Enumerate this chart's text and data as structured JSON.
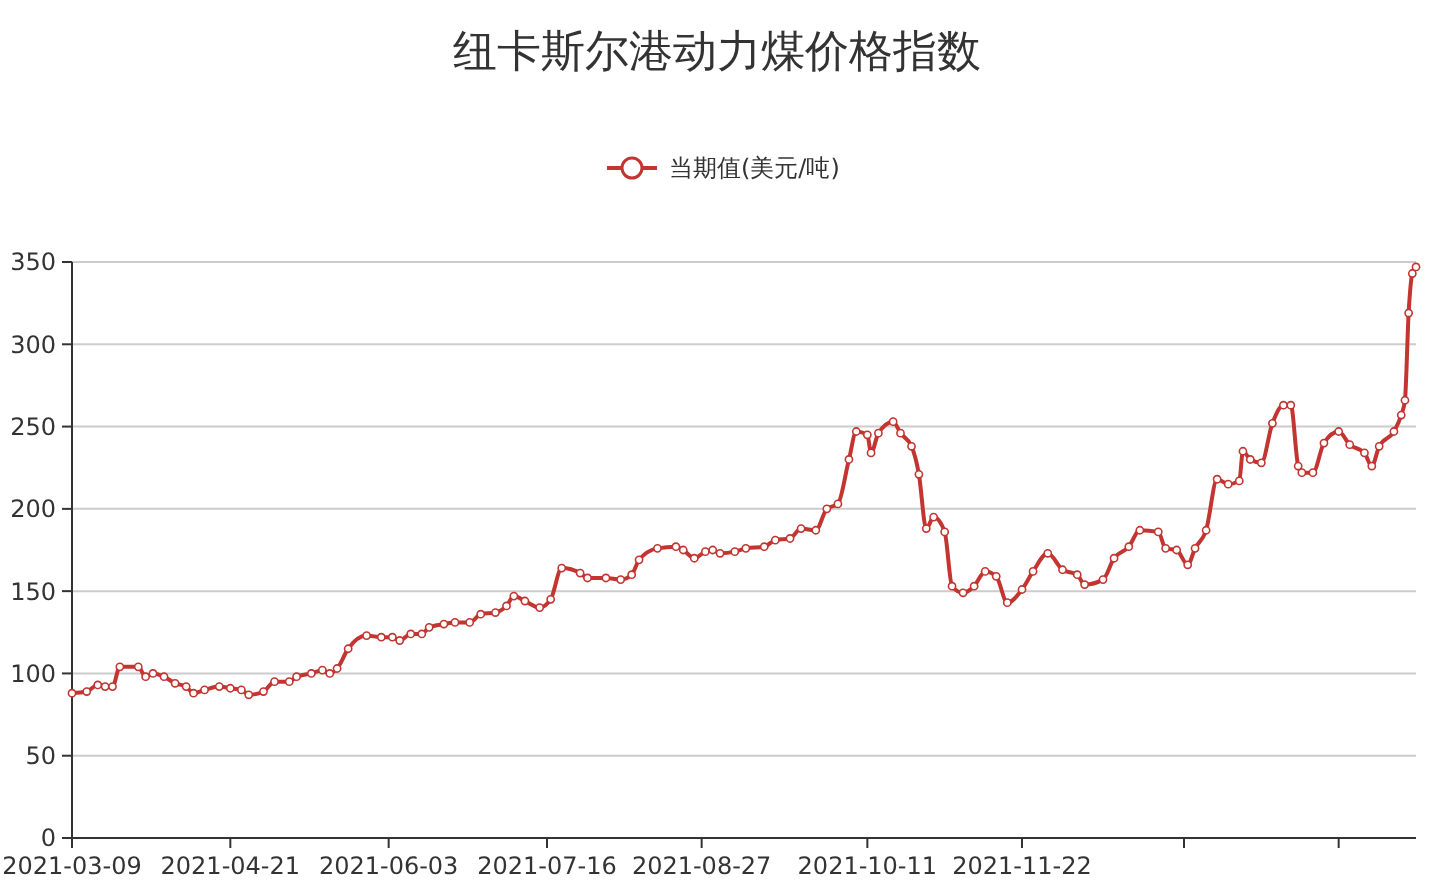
{
  "chart_data": {
    "type": "line",
    "title": "纽卡斯尔港动力煤价格指数",
    "x": [
      "2021-03-09",
      "2021-03-13",
      "2021-03-16",
      "2021-03-18",
      "2021-03-20",
      "2021-03-22",
      "2021-03-27",
      "2021-03-29",
      "2021-03-31",
      "2021-04-03",
      "2021-04-06",
      "2021-04-09",
      "2021-04-11",
      "2021-04-14",
      "2021-04-18",
      "2021-04-21",
      "2021-04-24",
      "2021-04-26",
      "2021-04-30",
      "2021-05-03",
      "2021-05-07",
      "2021-05-09",
      "2021-05-13",
      "2021-05-16",
      "2021-05-18",
      "2021-05-20",
      "2021-05-23",
      "2021-05-28",
      "2021-06-01",
      "2021-06-04",
      "2021-06-06",
      "2021-06-09",
      "2021-06-12",
      "2021-06-14",
      "2021-06-18",
      "2021-06-21",
      "2021-06-25",
      "2021-06-28",
      "2021-07-02",
      "2021-07-05",
      "2021-07-07",
      "2021-07-10",
      "2021-07-14",
      "2021-07-17",
      "2021-07-20",
      "2021-07-25",
      "2021-07-27",
      "2021-08-01",
      "2021-08-05",
      "2021-08-08",
      "2021-08-10",
      "2021-08-15",
      "2021-08-20",
      "2021-08-22",
      "2021-08-25",
      "2021-08-28",
      "2021-08-30",
      "2021-09-01",
      "2021-09-05",
      "2021-09-08",
      "2021-09-13",
      "2021-09-16",
      "2021-09-20",
      "2021-09-23",
      "2021-09-27",
      "2021-09-30",
      "2021-10-03",
      "2021-10-06",
      "2021-10-08",
      "2021-10-11",
      "2021-10-12",
      "2021-10-14",
      "2021-10-18",
      "2021-10-20",
      "2021-10-23",
      "2021-10-25",
      "2021-10-27",
      "2021-10-29",
      "2021-11-01",
      "2021-11-03",
      "2021-11-06",
      "2021-11-09",
      "2021-11-12",
      "2021-11-15",
      "2021-11-18",
      "2021-11-22",
      "2021-11-25",
      "2021-11-29",
      "2021-12-03",
      "2021-12-07",
      "2021-12-09",
      "2021-12-14",
      "2021-12-17",
      "2021-12-21",
      "2021-12-24",
      "2021-12-29",
      "2021-12-31",
      "2022-01-03",
      "2022-01-06",
      "2022-01-08",
      "2022-01-11",
      "2022-01-14",
      "2022-01-17",
      "2022-01-20",
      "2022-01-21",
      "2022-01-23",
      "2022-01-26",
      "2022-01-29",
      "2022-02-01",
      "2022-02-03",
      "2022-02-05",
      "2022-02-06",
      "2022-02-09",
      "2022-02-12",
      "2022-02-16",
      "2022-02-19",
      "2022-02-23",
      "2022-02-25",
      "2022-02-27",
      "2022-03-03",
      "2022-03-05",
      "2022-03-06",
      "2022-03-07",
      "2022-03-08",
      "2022-03-09"
    ],
    "series": [
      {
        "name": "当期值(美元/吨)",
        "color": "#c23531",
        "values": [
          88,
          89,
          93,
          92,
          92,
          104,
          104,
          98,
          100,
          98,
          94,
          92,
          88,
          90,
          92,
          91,
          90,
          87,
          89,
          95,
          95,
          98,
          100,
          102,
          100,
          103,
          115,
          123,
          122,
          122,
          120,
          124,
          124,
          128,
          130,
          131,
          131,
          136,
          137,
          141,
          147,
          144,
          140,
          145,
          164,
          161,
          158,
          158,
          157,
          160,
          169,
          176,
          177,
          175,
          170,
          174,
          175,
          173,
          174,
          176,
          177,
          181,
          182,
          188,
          187,
          200,
          203,
          230,
          247,
          245,
          234,
          246,
          253,
          246,
          238,
          221,
          188,
          195,
          186,
          153,
          149,
          153,
          162,
          159,
          143,
          151,
          162,
          173,
          163,
          160,
          154,
          157,
          170,
          177,
          187,
          186,
          176,
          175,
          166,
          176,
          187,
          218,
          215,
          217,
          235,
          230,
          228,
          252,
          263,
          263,
          226,
          222,
          222,
          240,
          247,
          239,
          234,
          226,
          238,
          247,
          257,
          266,
          319,
          343,
          347
        ]
      }
    ],
    "xlim": [
      "2021-03-09",
      "2022-03-09"
    ],
    "xticks": [
      "2021-03-09",
      "2021-04-21",
      "2021-06-03",
      "2021-07-16",
      "2021-08-27",
      "2021-10-11",
      "2021-11-22",
      {
        "value": "2022-01-05",
        "label": null
      },
      {
        "value": "2022-02-16",
        "label": null
      }
    ],
    "ylim": [
      0,
      350
    ],
    "yticks": [
      0,
      50,
      100,
      150,
      200,
      250,
      300,
      350
    ],
    "grid": "y",
    "legend": "top",
    "marker": "circle",
    "line_style": "solid"
  }
}
